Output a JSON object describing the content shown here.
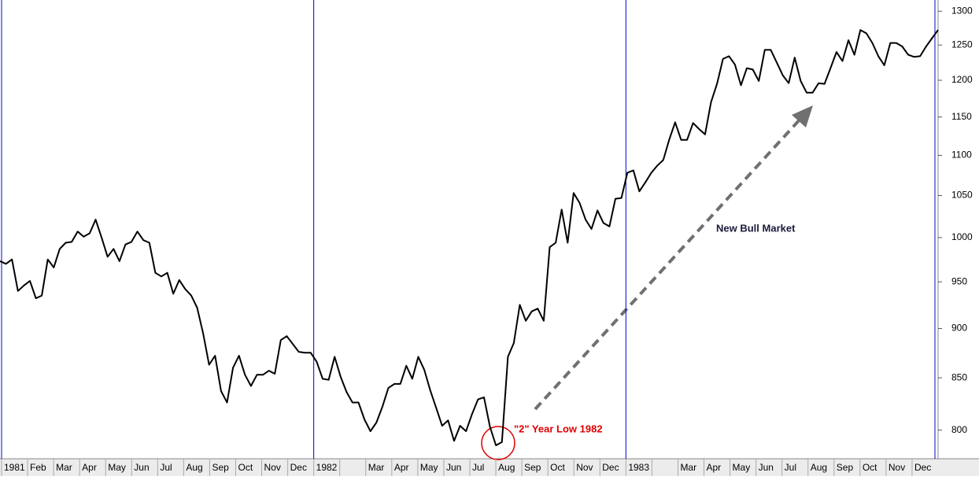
{
  "chart_data": {
    "type": "line",
    "color": "#000000",
    "log_scale": true,
    "ylim": [
      776,
      1317
    ],
    "yticks": [
      800,
      850,
      900,
      950,
      1000,
      1050,
      1100,
      1150,
      1200,
      1250,
      1300
    ],
    "year_line_color": "#0000cc",
    "month_labels": [
      "1981",
      "Feb",
      "Mar",
      "Apr",
      "May",
      "Jun",
      "Jul",
      "Aug",
      "Sep",
      "Oct",
      "Nov",
      "Dec",
      "1982",
      null,
      "Mar",
      "Apr",
      "May",
      "Jun",
      "Jul",
      "Aug",
      "Sep",
      "Oct",
      "Nov",
      "Dec",
      "1983",
      null,
      "Mar",
      "Apr",
      "May",
      "Jun",
      "Jul",
      "Aug",
      "Sep",
      "Oct",
      "Nov",
      "Dec"
    ],
    "values": [
      973,
      970,
      975,
      940,
      946,
      951,
      932,
      935,
      975,
      966,
      987,
      994,
      995,
      1007,
      1001,
      1005,
      1021,
      1000,
      978,
      987,
      973,
      992,
      995,
      1007,
      997,
      994,
      960,
      956,
      960,
      937,
      952,
      942,
      935,
      922,
      895,
      863,
      872,
      837,
      826,
      860,
      872,
      853,
      842,
      853,
      853,
      857,
      854,
      888,
      892,
      884,
      876,
      875,
      875,
      866,
      849,
      848,
      871,
      851,
      836,
      826,
      826,
      810,
      799,
      807,
      822,
      840,
      844,
      844,
      862,
      849,
      871,
      858,
      838,
      821,
      804,
      809,
      790,
      804,
      799,
      815,
      829,
      831,
      803,
      786,
      789,
      871,
      885,
      925,
      908,
      918,
      921,
      908,
      989,
      994,
      1033,
      994,
      1053,
      1041,
      1021,
      1010,
      1032,
      1017,
      1013,
      1046,
      1047,
      1078,
      1081,
      1055,
      1066,
      1078,
      1087,
      1094,
      1120,
      1143,
      1120,
      1120,
      1142,
      1134,
      1127,
      1170,
      1195,
      1230,
      1234,
      1222,
      1193,
      1217,
      1215,
      1199,
      1243,
      1243,
      1225,
      1207,
      1196,
      1232,
      1199,
      1183,
      1183,
      1196,
      1195,
      1217,
      1240,
      1227,
      1257,
      1236,
      1272,
      1267,
      1253,
      1234,
      1221,
      1253,
      1253,
      1248,
      1236,
      1233,
      1234,
      1248,
      1260,
      1272
    ],
    "annotations": [
      {
        "text": "\"2\" Year Low 1982",
        "color": "#e00000"
      },
      {
        "text": "New Bull Market",
        "color": "#1a1a3a"
      }
    ]
  }
}
